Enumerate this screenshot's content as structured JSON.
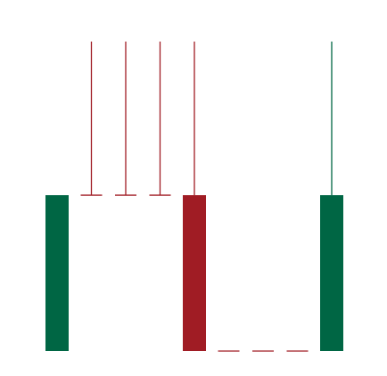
{
  "chart_data": {
    "type": "candlestick",
    "title": "",
    "xlabel": "",
    "ylabel": "",
    "ylim": [
      0,
      100
    ],
    "grid": false,
    "legend": "none",
    "colors": {
      "up": "#006644",
      "down": "#a01c24"
    },
    "candles": [
      {
        "index": 1,
        "open": 0,
        "close": 47.8,
        "high": 47.8,
        "low": 0
      },
      {
        "index": 2,
        "open": 47.8,
        "close": 47.8,
        "high": 94.9,
        "low": 47.8
      },
      {
        "index": 3,
        "open": 47.8,
        "close": 47.8,
        "high": 94.9,
        "low": 47.8
      },
      {
        "index": 4,
        "open": 47.8,
        "close": 47.8,
        "high": 94.9,
        "low": 47.8
      },
      {
        "index": 5,
        "open": 47.8,
        "close": 0,
        "high": 94.9,
        "low": 0
      },
      {
        "index": 6,
        "open": 0,
        "close": 0,
        "high": 0,
        "low": 0
      },
      {
        "index": 7,
        "open": 0,
        "close": 0,
        "high": 0,
        "low": 0
      },
      {
        "index": 8,
        "open": 0,
        "close": 0,
        "high": 0,
        "low": 0
      },
      {
        "index": 9,
        "open": 0,
        "close": 47.8,
        "high": 94.9,
        "low": 0
      }
    ]
  }
}
